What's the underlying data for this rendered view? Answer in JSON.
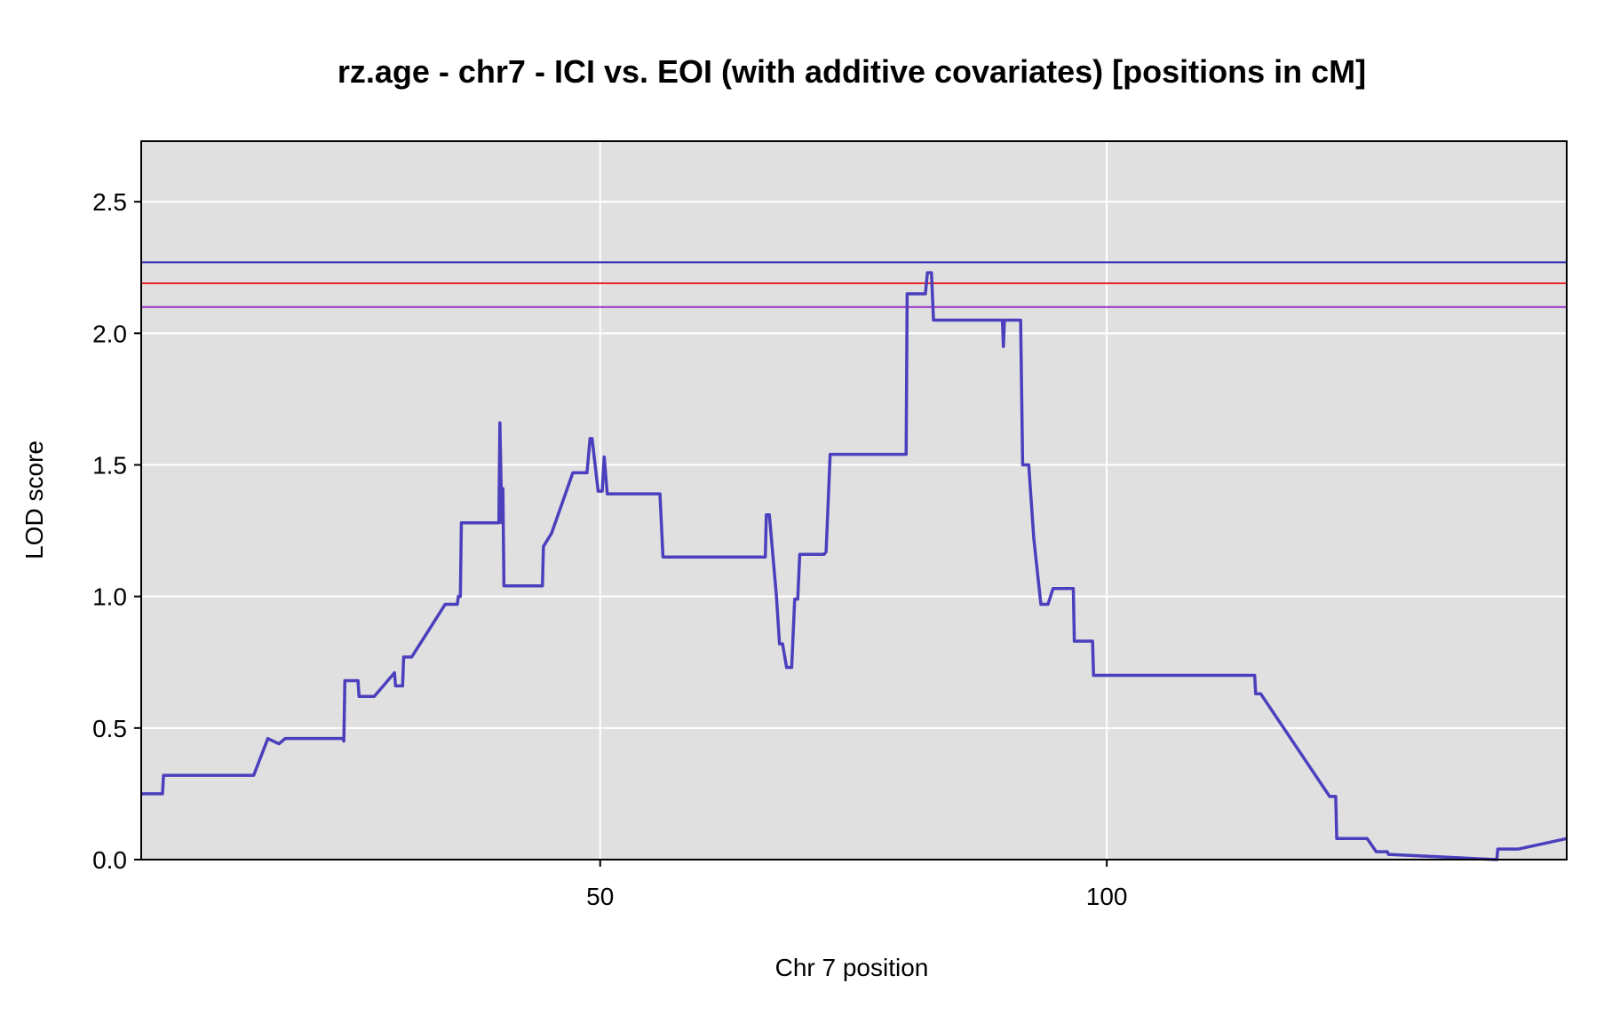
{
  "chart_data": {
    "type": "line",
    "title": "rz.age - chr7 - ICI vs. EOI (with additive covariates) [positions in cM]",
    "xlabel": "Chr 7 position",
    "ylabel": "LOD score",
    "xlim": [
      4.7,
      145.4
    ],
    "ylim": [
      0,
      2.73
    ],
    "x_ticks": [
      50,
      100
    ],
    "y_ticks": [
      0.0,
      0.5,
      1.0,
      1.5,
      2.0,
      2.5
    ],
    "y_tick_labels": [
      "0.0",
      "0.5",
      "1.0",
      "1.5",
      "2.0",
      "2.5"
    ],
    "grid": true,
    "colors": {
      "series": "#4b3fbd",
      "panel": "#e0e0e0",
      "threshold_blue": "#2a2ab0",
      "threshold_red": "#e8262a",
      "threshold_purple": "#9b2fc9"
    },
    "thresholds": [
      {
        "value": 2.27,
        "color": "#2a2ab0"
      },
      {
        "value": 2.19,
        "color": "#e8262a"
      },
      {
        "value": 2.1,
        "color": "#9b2fc9"
      }
    ],
    "series": [
      {
        "points": [
          [
            4.7,
            0.25
          ],
          [
            6.8,
            0.25
          ],
          [
            6.9,
            0.32
          ],
          [
            14.5,
            0.32
          ],
          [
            15.8,
            0.32
          ],
          [
            17.2,
            0.46
          ],
          [
            18.3,
            0.44
          ],
          [
            18.9,
            0.46
          ],
          [
            23.5,
            0.46
          ],
          [
            24.6,
            0.46
          ],
          [
            24.7,
            0.45
          ],
          [
            24.8,
            0.68
          ],
          [
            26.1,
            0.68
          ],
          [
            26.2,
            0.62
          ],
          [
            27.7,
            0.62
          ],
          [
            29.7,
            0.71
          ],
          [
            29.8,
            0.66
          ],
          [
            30.5,
            0.66
          ],
          [
            30.6,
            0.77
          ],
          [
            31.4,
            0.77
          ],
          [
            34.7,
            0.97
          ],
          [
            35.9,
            0.97
          ],
          [
            36.0,
            1.0
          ],
          [
            36.2,
            1.0
          ],
          [
            36.3,
            1.28
          ],
          [
            39.7,
            1.28
          ],
          [
            40.0,
            1.28
          ],
          [
            40.1,
            1.66
          ],
          [
            40.3,
            1.28
          ],
          [
            40.4,
            1.41
          ],
          [
            40.5,
            1.04
          ],
          [
            44.3,
            1.04
          ],
          [
            44.4,
            1.19
          ],
          [
            45.2,
            1.24
          ],
          [
            47.3,
            1.47
          ],
          [
            48.7,
            1.47
          ],
          [
            49.0,
            1.6
          ],
          [
            49.2,
            1.6
          ],
          [
            49.8,
            1.4
          ],
          [
            50.2,
            1.4
          ],
          [
            50.4,
            1.53
          ],
          [
            50.7,
            1.39
          ],
          [
            55.9,
            1.39
          ],
          [
            56.2,
            1.15
          ],
          [
            63.7,
            1.15
          ],
          [
            63.8,
            1.15
          ],
          [
            66.3,
            1.15
          ],
          [
            66.4,
            1.31
          ],
          [
            66.7,
            1.31
          ],
          [
            67.4,
            1.0
          ],
          [
            67.7,
            0.82
          ],
          [
            68.0,
            0.82
          ],
          [
            68.4,
            0.73
          ],
          [
            68.9,
            0.73
          ],
          [
            69.2,
            0.99
          ],
          [
            69.5,
            0.99
          ],
          [
            69.7,
            1.16
          ],
          [
            72.1,
            1.16
          ],
          [
            72.3,
            1.17
          ],
          [
            72.7,
            1.54
          ],
          [
            75.8,
            1.54
          ],
          [
            80.2,
            1.54
          ],
          [
            80.3,
            2.15
          ],
          [
            82.1,
            2.15
          ],
          [
            82.3,
            2.23
          ],
          [
            82.7,
            2.23
          ],
          [
            82.9,
            2.05
          ],
          [
            86.3,
            2.05
          ],
          [
            87.8,
            2.05
          ],
          [
            89.7,
            2.05
          ],
          [
            89.8,
            1.95
          ],
          [
            89.9,
            2.05
          ],
          [
            91.5,
            2.05
          ],
          [
            91.7,
            1.5
          ],
          [
            92.3,
            1.5
          ],
          [
            92.8,
            1.22
          ],
          [
            93.5,
            0.97
          ],
          [
            94.2,
            0.97
          ],
          [
            94.7,
            1.03
          ],
          [
            96.7,
            1.03
          ],
          [
            96.8,
            0.83
          ],
          [
            98.6,
            0.83
          ],
          [
            98.7,
            0.7
          ],
          [
            100.3,
            0.7
          ],
          [
            104.3,
            0.7
          ],
          [
            104.4,
            0.7
          ],
          [
            109.7,
            0.7
          ],
          [
            109.8,
            0.7
          ],
          [
            114.4,
            0.7
          ],
          [
            114.6,
            0.7
          ],
          [
            114.7,
            0.63
          ],
          [
            115.2,
            0.63
          ],
          [
            122.0,
            0.24
          ],
          [
            122.6,
            0.24
          ],
          [
            122.7,
            0.08
          ],
          [
            125.7,
            0.08
          ],
          [
            126.6,
            0.03
          ],
          [
            127.7,
            0.03
          ],
          [
            127.8,
            0.02
          ],
          [
            138.5,
            0.0
          ],
          [
            138.6,
            0.04
          ],
          [
            140.6,
            0.04
          ],
          [
            145.4,
            0.08
          ]
        ]
      }
    ]
  }
}
